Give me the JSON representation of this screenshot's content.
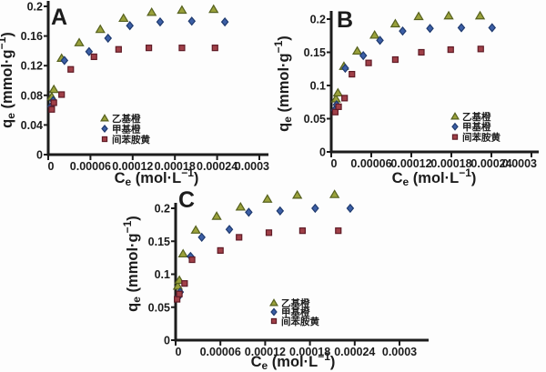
{
  "figure": {
    "background": "#fdfdfd",
    "axis_color": "#1c1c1c",
    "text_color": "#1c1c1c"
  },
  "chart_data": [
    {
      "id": "A",
      "type": "scatter",
      "panel_label": "A",
      "xlabel": "Ce (mol·L−1)",
      "ylabel": "qe (mmol·g−1)",
      "xlabel_parts": [
        {
          "t": "n",
          "s": "C"
        },
        {
          "t": "sub",
          "s": "e"
        },
        {
          "t": "n",
          "s": " (mol·L"
        },
        {
          "t": "sup",
          "s": "−1"
        },
        {
          "t": "n",
          "s": ")"
        }
      ],
      "ylabel_parts": [
        {
          "t": "n",
          "s": "q"
        },
        {
          "t": "sub",
          "s": "e"
        },
        {
          "t": "n",
          "s": " (mmol·g"
        },
        {
          "t": "sup",
          "s": "−1"
        },
        {
          "t": "n",
          "s": ")"
        }
      ],
      "x_range": [
        0,
        0.0003
      ],
      "y_range": [
        0,
        0.2
      ],
      "grid": false,
      "legend_position": "inside-lower-middle",
      "x_ticks": {
        "values": [
          0,
          6e-05,
          0.00012,
          0.00018,
          0.00024,
          0.0003
        ],
        "labels": [
          "0",
          "0.00006",
          "0.00012",
          "0.00018",
          "0.00024",
          "0.0003"
        ]
      },
      "y_ticks": {
        "values": [
          0,
          0.04,
          0.08,
          0.12,
          0.16,
          0.2
        ],
        "labels": [
          "0",
          "0.04",
          "0.08",
          "0.12",
          "0.16",
          "0.2"
        ]
      },
      "series": [
        {
          "name": "乙基橙",
          "marker": "triangle",
          "fill": "#9aa13b",
          "stroke": "#55601e",
          "x": [
            5e-06,
            8e-06,
            1.9e-05,
            4.4e-05,
            7.4e-05,
            0.000107,
            0.000147,
            0.00019,
            0.000235
          ],
          "y": [
            0.078,
            0.088,
            0.13,
            0.151,
            0.169,
            0.184,
            0.192,
            0.195,
            0.196
          ]
        },
        {
          "name": "甲基橙",
          "marker": "diamond",
          "fill": "#3c5fa6",
          "stroke": "#1f3a6e",
          "x": [
            4e-06,
            7e-06,
            2.3e-05,
            5.8e-05,
            8.5e-05,
            0.000116,
            0.000159,
            0.000204,
            0.000251
          ],
          "y": [
            0.065,
            0.073,
            0.127,
            0.139,
            0.157,
            0.174,
            0.179,
            0.18,
            0.179
          ]
        },
        {
          "name": "间苯胺黄",
          "marker": "square",
          "fill": "#a04048",
          "stroke": "#5f1b26",
          "x": [
            5e-06,
            8e-06,
            1.9e-05,
            3.2e-05,
            6.5e-05,
            0.0001,
            0.000143,
            0.00019,
            0.000237
          ],
          "y": [
            0.061,
            0.07,
            0.081,
            0.115,
            0.132,
            0.142,
            0.144,
            0.144,
            0.144
          ]
        }
      ]
    },
    {
      "id": "B",
      "type": "scatter",
      "panel_label": "B",
      "xlabel": "Ce (mol·L−1)",
      "ylabel": "qe (mmol·g−1)",
      "xlabel_parts": [
        {
          "t": "n",
          "s": "C"
        },
        {
          "t": "sub",
          "s": "e"
        },
        {
          "t": "n",
          "s": " (mol·L"
        },
        {
          "t": "sup",
          "s": "−1"
        },
        {
          "t": "n",
          "s": ")"
        }
      ],
      "ylabel_parts": [
        {
          "t": "n",
          "s": "q"
        },
        {
          "t": "sub",
          "s": "e"
        },
        {
          "t": "n",
          "s": " (mmol·g"
        },
        {
          "t": "sup",
          "s": "−1"
        },
        {
          "t": "n",
          "s": ")"
        }
      ],
      "x_range": [
        0,
        0.0003
      ],
      "y_range": [
        0,
        0.2
      ],
      "grid": false,
      "legend_position": "inside-lower-middle",
      "x_ticks": {
        "values": [
          0,
          6e-05,
          0.00012,
          0.00018,
          0.00024,
          0.0003
        ],
        "labels": [
          "0",
          "0.00006",
          "0.00012",
          "0.00018",
          "0.00024",
          "0.0003"
        ]
      },
      "y_ticks": {
        "values": [
          0,
          0.05,
          0.1,
          0.15,
          0.2
        ],
        "labels": [
          "0",
          "0.05",
          "0.1",
          "0.15",
          "0.2"
        ]
      },
      "series": [
        {
          "name": "乙基橙",
          "marker": "triangle",
          "fill": "#9aa13b",
          "stroke": "#55601e",
          "x": [
            7e-06,
            1e-05,
            1.9e-05,
            3.9e-05,
            6.5e-05,
            9.6e-05,
            0.000131,
            0.000176,
            0.000223
          ],
          "y": [
            0.08,
            0.089,
            0.129,
            0.152,
            0.176,
            0.193,
            0.204,
            0.205,
            0.205
          ]
        },
        {
          "name": "甲基橙",
          "marker": "diamond",
          "fill": "#3c5fa6",
          "stroke": "#1f3a6e",
          "x": [
            5e-06,
            8e-06,
            2.1e-05,
            4.8e-05,
            7.3e-05,
            0.000107,
            0.000148,
            0.000195,
            0.000241
          ],
          "y": [
            0.063,
            0.071,
            0.126,
            0.145,
            0.168,
            0.182,
            0.186,
            0.187,
            0.187
          ]
        },
        {
          "name": "间苯胺黄",
          "marker": "square",
          "fill": "#a04048",
          "stroke": "#5f1b26",
          "x": [
            6e-06,
            1.1e-05,
            2e-05,
            3.1e-05,
            5.6e-05,
            9.6e-05,
            0.000135,
            0.000179,
            0.000224
          ],
          "y": [
            0.06,
            0.068,
            0.081,
            0.117,
            0.134,
            0.139,
            0.15,
            0.154,
            0.155
          ]
        }
      ]
    },
    {
      "id": "C",
      "type": "scatter",
      "panel_label": "C",
      "xlabel": "Ce (mol·L−1)",
      "ylabel": "qe (mmol·g−1)",
      "xlabel_parts": [
        {
          "t": "n",
          "s": "C"
        },
        {
          "t": "sub",
          "s": "e"
        },
        {
          "t": "n",
          "s": " (mol·L"
        },
        {
          "t": "sup",
          "s": "−1"
        },
        {
          "t": "n",
          "s": ")"
        }
      ],
      "ylabel_parts": [
        {
          "t": "n",
          "s": "q"
        },
        {
          "t": "sub",
          "s": "e"
        },
        {
          "t": "n",
          "s": " (mmol·g"
        },
        {
          "t": "sup",
          "s": "−1"
        },
        {
          "t": "n",
          "s": ")"
        }
      ],
      "x_range": [
        0,
        0.0003
      ],
      "y_range": [
        0,
        0.2
      ],
      "grid": false,
      "legend_position": "inside-lower-middle",
      "x_ticks": {
        "values": [
          0,
          6e-05,
          0.00012,
          0.00018,
          0.00024,
          0.0003
        ],
        "labels": [
          "0",
          "0.00006",
          "0.00012",
          "0.00018",
          "0.00024",
          "0.0003"
        ]
      },
      "y_ticks": {
        "values": [
          0,
          0.05,
          0.1,
          0.15,
          0.2
        ],
        "labels": [
          "0",
          "0.05",
          "0.1",
          "0.15",
          "0.2"
        ]
      },
      "series": [
        {
          "name": "乙基橙",
          "marker": "triangle",
          "fill": "#9aa13b",
          "stroke": "#55601e",
          "x": [
            3e-06,
            5e-06,
            1e-05,
            2.7e-05,
            5.5e-05,
            8.7e-05,
            0.000123,
            0.000163,
            0.000213
          ],
          "y": [
            0.082,
            0.091,
            0.131,
            0.167,
            0.188,
            0.202,
            0.214,
            0.22,
            0.221
          ]
        },
        {
          "name": "甲基橙",
          "marker": "diamond",
          "fill": "#3c5fa6",
          "stroke": "#1f3a6e",
          "x": [
            4e-06,
            6e-06,
            2e-05,
            3.5e-05,
            7.2e-05,
            9.8e-05,
            0.00014,
            0.000187,
            0.000234
          ],
          "y": [
            0.066,
            0.073,
            0.127,
            0.156,
            0.168,
            0.194,
            0.196,
            0.2,
            0.2
          ]
        },
        {
          "name": "间苯胺黄",
          "marker": "square",
          "fill": "#a04048",
          "stroke": "#5f1b26",
          "x": [
            2e-06,
            5e-06,
            1.2e-05,
            2.2e-05,
            6e-05,
            8.5e-05,
            0.000125,
            0.00017,
            0.000218
          ],
          "y": [
            0.062,
            0.07,
            0.086,
            0.122,
            0.136,
            0.156,
            0.163,
            0.166,
            0.166
          ]
        }
      ]
    }
  ]
}
